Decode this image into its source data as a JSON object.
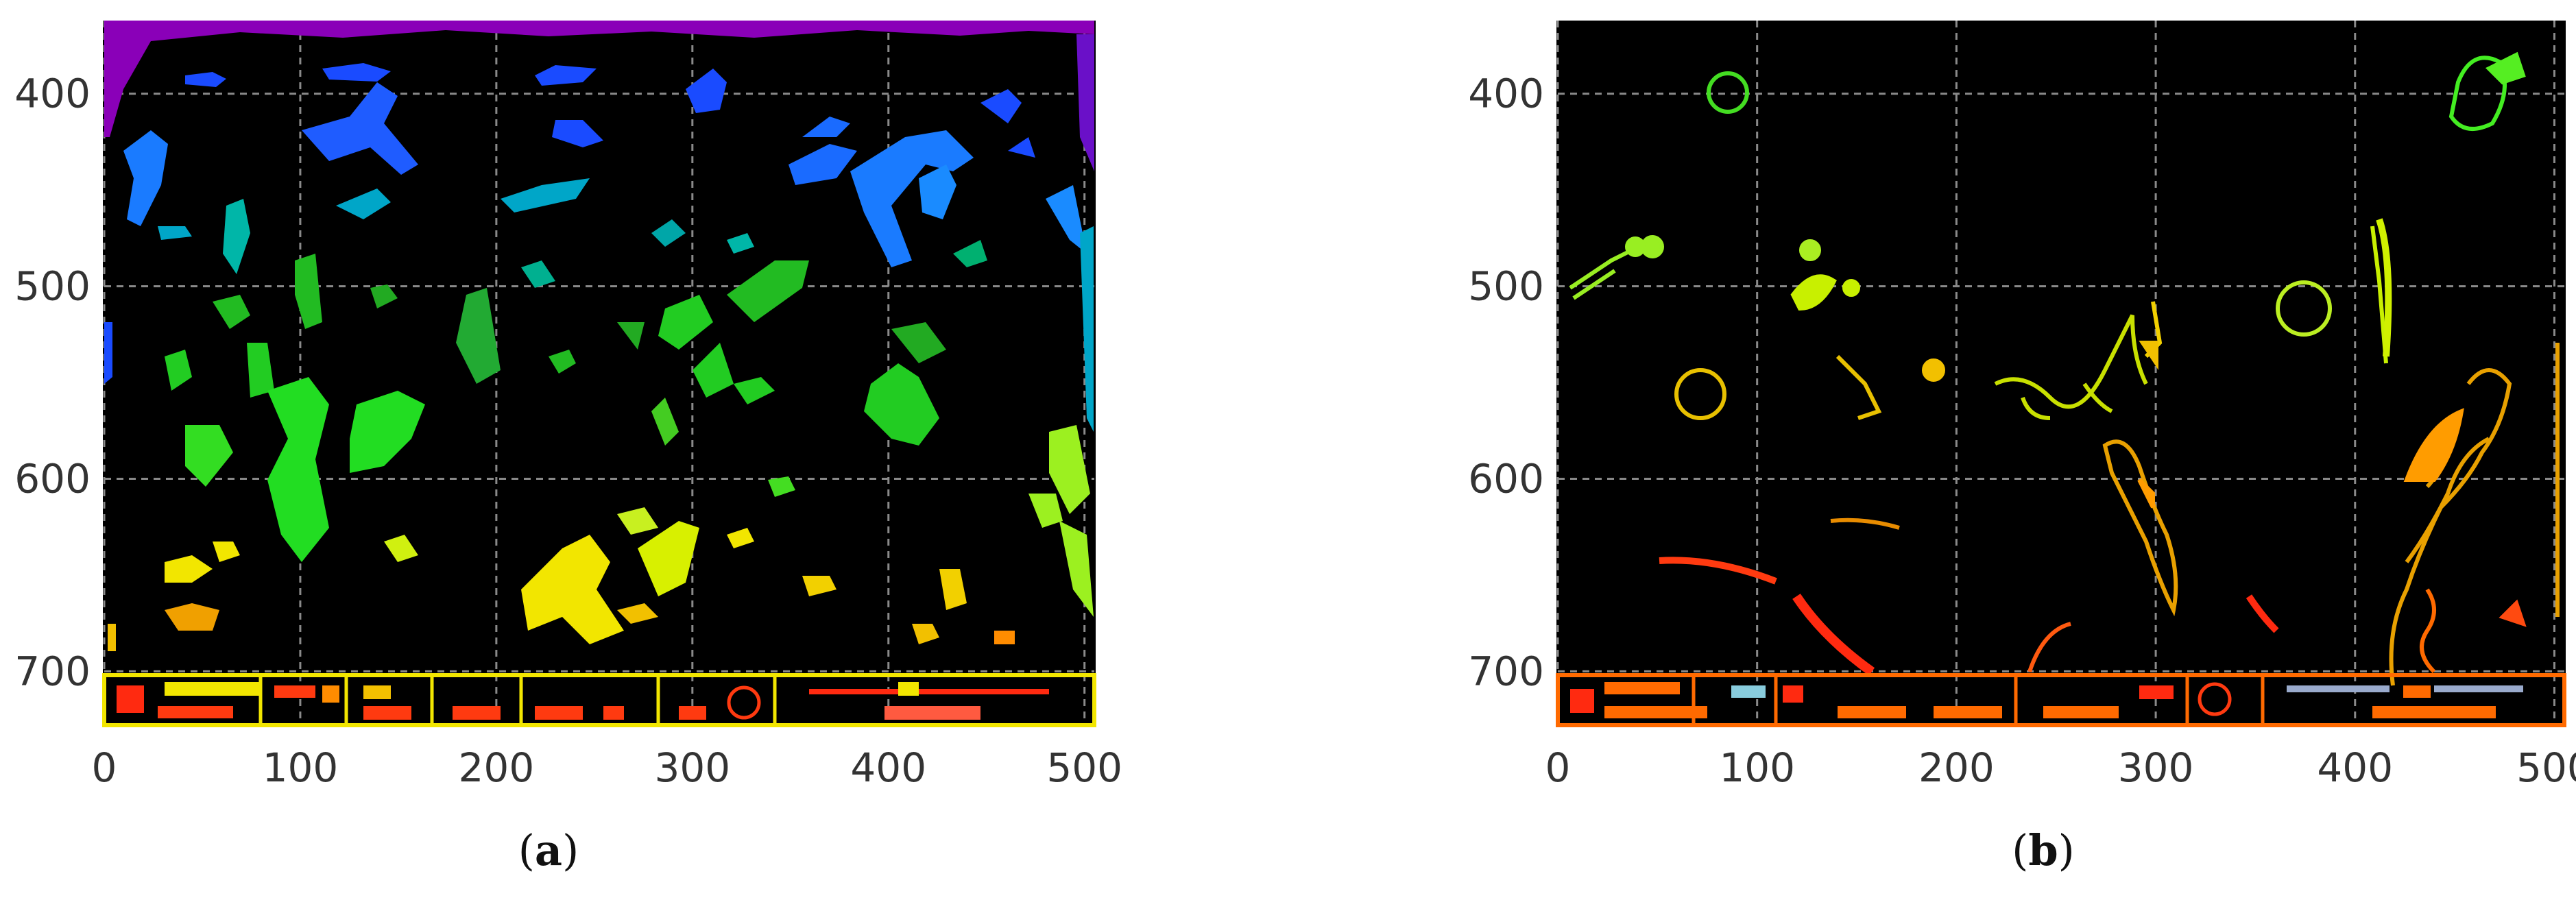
{
  "panels": [
    {
      "id": "a",
      "caption_open": "(",
      "caption_letter": "a",
      "caption_close": ")",
      "x_ticks": [
        "0",
        "100",
        "200",
        "300",
        "400",
        "500"
      ],
      "y_ticks": [
        "400",
        "500",
        "600",
        "700"
      ],
      "x_range": [
        0,
        505
      ],
      "y_range": [
        362,
        728
      ],
      "grid": true,
      "colormap": "rainbow"
    },
    {
      "id": "b",
      "caption_open": "(",
      "caption_letter": "b",
      "caption_close": ")",
      "x_ticks": [
        "0",
        "100",
        "200",
        "300",
        "400",
        "500"
      ],
      "y_ticks": [
        "400",
        "500",
        "600",
        "700"
      ],
      "x_range": [
        0,
        505
      ],
      "y_range": [
        362,
        728
      ],
      "grid": true,
      "colormap": "contours"
    }
  ],
  "colors": {
    "background": "#000000",
    "grid": "#8a8a8a",
    "purple": "#8a00b8",
    "blue": "#1a4bff",
    "cyan": "#00a6c8",
    "green": "#22cc22",
    "lime": "#9cf020",
    "yellow": "#f2e600",
    "orange": "#ff8c00",
    "red": "#ff2a10"
  }
}
